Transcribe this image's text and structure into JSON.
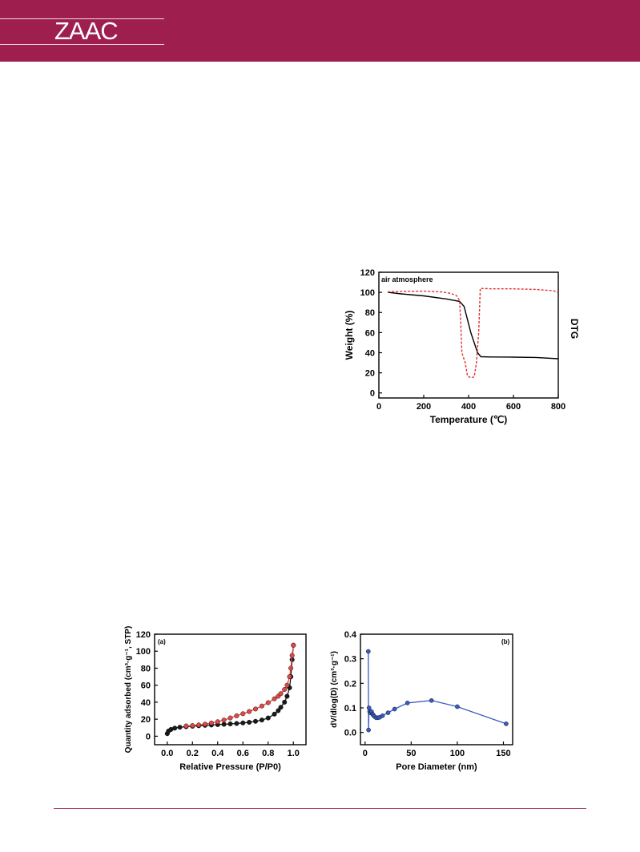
{
  "header": {
    "logo_text": "ZAAC",
    "colors": {
      "bar": "#9e1f4e",
      "rule": "#f2d9e0",
      "logo": "#ffffff"
    }
  },
  "chart_data": [
    {
      "id": "tga",
      "type": "line",
      "annotation": "air atmosphere",
      "xlabel": "Temperature (℃)",
      "ylabel": "Weight (%)",
      "ylabel_right": "DTG",
      "xlim": [
        0,
        800
      ],
      "ylim": [
        -5,
        120
      ],
      "xticks": [
        0,
        200,
        400,
        600,
        800
      ],
      "yticks": [
        0,
        20,
        40,
        60,
        80,
        100,
        120
      ],
      "series": [
        {
          "style": "solid",
          "color": "#000000",
          "points": [
            [
              40,
              100
            ],
            [
              100,
              98.5
            ],
            [
              200,
              96.5
            ],
            [
              300,
              93.5
            ],
            [
              360,
              91
            ],
            [
              380,
              86
            ],
            [
              410,
              60
            ],
            [
              440,
              40
            ],
            [
              455,
              36
            ],
            [
              500,
              35.8
            ],
            [
              600,
              35.6
            ],
            [
              700,
              35.3
            ],
            [
              800,
              34
            ]
          ]
        },
        {
          "style": "dashed",
          "color": "#e03030",
          "points": [
            [
              40,
              100.5
            ],
            [
              100,
              101
            ],
            [
              200,
              101.2
            ],
            [
              280,
              100.5
            ],
            [
              320,
              99
            ],
            [
              345,
              97
            ],
            [
              360,
              92
            ],
            [
              365,
              70
            ],
            [
              370,
              40
            ],
            [
              385,
              30
            ],
            [
              395,
              17
            ],
            [
              410,
              15
            ],
            [
              425,
              16
            ],
            [
              435,
              30
            ],
            [
              445,
              60
            ],
            [
              452,
              104
            ],
            [
              500,
              103.5
            ],
            [
              600,
              103.5
            ],
            [
              700,
              103
            ],
            [
              780,
              101.5
            ],
            [
              800,
              100
            ]
          ]
        }
      ]
    },
    {
      "id": "isotherm",
      "type": "line",
      "panel_label": "(a)",
      "xlabel": "Relative Pressure (P/P0)",
      "ylabel": "Quantity adsorbed (cm³·g⁻¹, STP)",
      "xlim": [
        -0.1,
        1.1
      ],
      "ylim": [
        -10,
        120
      ],
      "xticks": [
        0.0,
        0.2,
        0.4,
        0.6,
        0.8,
        1.0
      ],
      "yticks": [
        0,
        20,
        40,
        60,
        80,
        100,
        120
      ],
      "series": [
        {
          "color": "#1a1a1a",
          "points": [
            [
              0.0,
              3
            ],
            [
              0.01,
              6
            ],
            [
              0.03,
              8
            ],
            [
              0.06,
              9.5
            ],
            [
              0.1,
              10.5
            ],
            [
              0.15,
              11.2
            ],
            [
              0.2,
              11.8
            ],
            [
              0.25,
              12.3
            ],
            [
              0.3,
              12.8
            ],
            [
              0.35,
              13.2
            ],
            [
              0.4,
              13.6
            ],
            [
              0.45,
              14
            ],
            [
              0.5,
              14.5
            ],
            [
              0.55,
              15
            ],
            [
              0.6,
              15.6
            ],
            [
              0.65,
              16.4
            ],
            [
              0.7,
              17.5
            ],
            [
              0.75,
              19
            ],
            [
              0.8,
              21.5
            ],
            [
              0.85,
              26
            ],
            [
              0.88,
              30
            ],
            [
              0.9,
              34
            ],
            [
              0.93,
              40
            ],
            [
              0.95,
              47
            ],
            [
              0.97,
              57
            ],
            [
              0.98,
              70
            ],
            [
              0.99,
              90
            ],
            [
              1.0,
              107
            ]
          ]
        },
        {
          "color": "#e04848",
          "points": [
            [
              0.15,
              12
            ],
            [
              0.2,
              12.5
            ],
            [
              0.25,
              13.3
            ],
            [
              0.3,
              14.2
            ],
            [
              0.35,
              15.5
            ],
            [
              0.4,
              17
            ],
            [
              0.45,
              19
            ],
            [
              0.5,
              21.5
            ],
            [
              0.55,
              24
            ],
            [
              0.6,
              26.5
            ],
            [
              0.65,
              29
            ],
            [
              0.7,
              32
            ],
            [
              0.75,
              35.5
            ],
            [
              0.8,
              39.5
            ],
            [
              0.85,
              44
            ],
            [
              0.88,
              47
            ],
            [
              0.9,
              50
            ],
            [
              0.93,
              55
            ],
            [
              0.95,
              60
            ],
            [
              0.97,
              70
            ],
            [
              0.98,
              80
            ],
            [
              0.99,
              95
            ],
            [
              1.0,
              107
            ]
          ]
        }
      ]
    },
    {
      "id": "pore",
      "type": "line",
      "panel_label": "(b)",
      "xlabel": "Pore Diameter (nm)",
      "ylabel": "dV/dlog(D) (cm³·g⁻¹)",
      "xlim": [
        -5,
        160
      ],
      "ylim": [
        -0.05,
        0.4
      ],
      "xticks": [
        0,
        50,
        100,
        150
      ],
      "yticks": [
        0.0,
        0.1,
        0.2,
        0.3,
        0.4
      ],
      "series": [
        {
          "color": "#3a5bc0",
          "points": [
            [
              3.5,
              0.33
            ],
            [
              3.8,
              0.01
            ],
            [
              4.3,
              0.1
            ],
            [
              5,
              0.085
            ],
            [
              6,
              0.08
            ],
            [
              7,
              0.085
            ],
            [
              8,
              0.075
            ],
            [
              9,
              0.07
            ],
            [
              10,
              0.065
            ],
            [
              12,
              0.06
            ],
            [
              14,
              0.06
            ],
            [
              16,
              0.062
            ],
            [
              19,
              0.068
            ],
            [
              25,
              0.08
            ],
            [
              32,
              0.095
            ],
            [
              46,
              0.12
            ],
            [
              72,
              0.13
            ],
            [
              100,
              0.105
            ],
            [
              153,
              0.035
            ]
          ]
        }
      ]
    }
  ]
}
